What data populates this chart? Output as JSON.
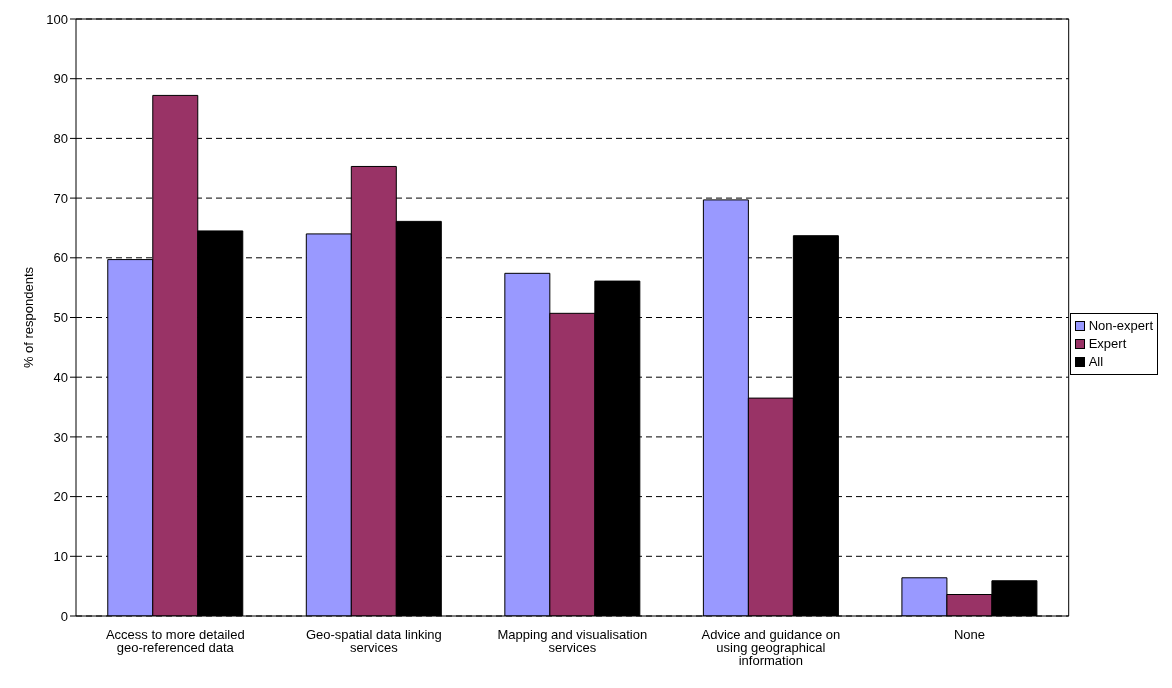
{
  "chart_data": {
    "type": "bar",
    "ylabel": "% of respondents",
    "categories": [
      "Access to more detailed geo-referenced data",
      "Geo-spatial data linking services",
      "Mapping and visualisation services",
      "Advice and guidance on using geographical information",
      "None"
    ],
    "series": [
      {
        "name": "Non-expert",
        "color": "#9999ff",
        "values": [
          59.7,
          64,
          57.4,
          69.7,
          6.4
        ]
      },
      {
        "name": "Expert",
        "color": "#993366",
        "values": [
          87.2,
          75.3,
          50.7,
          36.5,
          3.6
        ]
      },
      {
        "name": "All",
        "color": "#000000",
        "values": [
          64.5,
          66.1,
          56.1,
          63.7,
          5.9
        ]
      }
    ],
    "ylim": [
      0,
      100
    ],
    "yticks": [
      0,
      10,
      20,
      30,
      40,
      50,
      60,
      70,
      80,
      90,
      100
    ],
    "grid": "y",
    "legend": "right"
  }
}
